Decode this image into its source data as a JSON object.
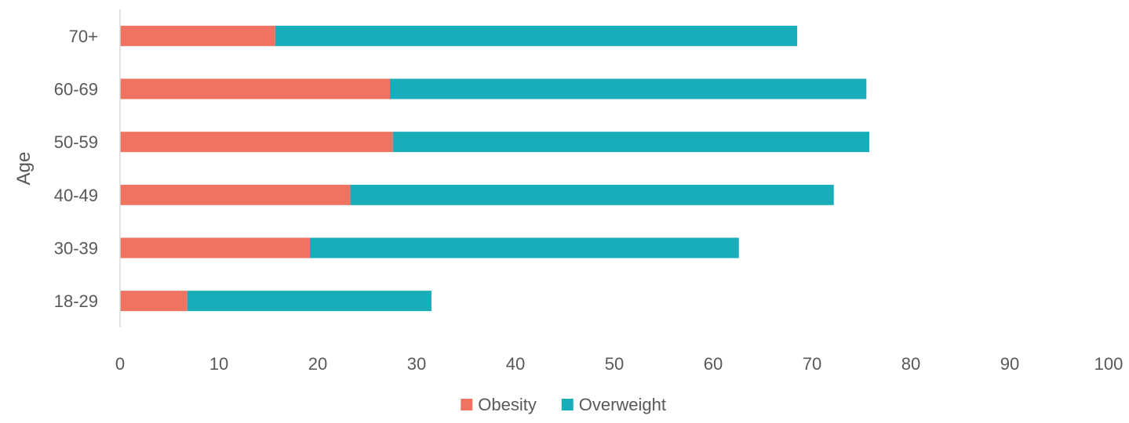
{
  "chart_data": {
    "type": "bar",
    "orientation": "horizontal",
    "stacked": true,
    "ylabel": "Age",
    "xlabel": "",
    "categories": [
      "18-29",
      "30-39",
      "40-49",
      "50-59",
      "60-69",
      "70+"
    ],
    "series": [
      {
        "name": "Obesity",
        "color": "#f07361",
        "values": [
          6.8,
          19.2,
          23.3,
          27.6,
          27.3,
          15.7
        ]
      },
      {
        "name": "Overweight",
        "color": "#18adb8",
        "values": [
          24.7,
          43.4,
          48.9,
          48.2,
          48.2,
          52.8
        ]
      }
    ],
    "xlim": [
      0,
      100
    ],
    "xticks": [
      0,
      10,
      20,
      30,
      40,
      50,
      60,
      70,
      80,
      90,
      100
    ],
    "grid": false,
    "legend": "bottom"
  }
}
